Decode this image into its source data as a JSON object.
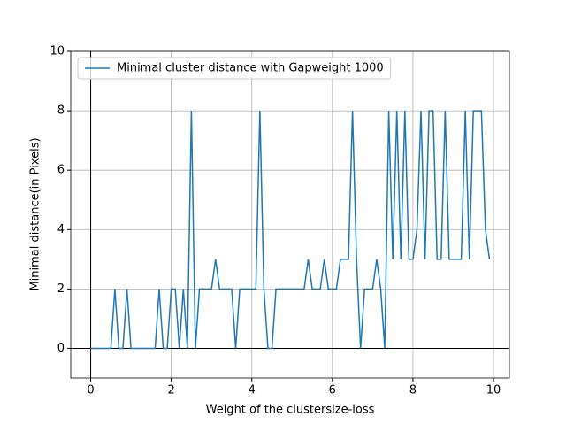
{
  "chart_data": {
    "type": "line",
    "xlabel": "Weight of the clustersize-loss",
    "ylabel": "Minimal distance(in Pixels)",
    "x": [
      0,
      0.1,
      0.2,
      0.3,
      0.4,
      0.5,
      0.6,
      0.7,
      0.8,
      0.9,
      1,
      1.1,
      1.2,
      1.3,
      1.4,
      1.5,
      1.6,
      1.7,
      1.8,
      1.9,
      2,
      2.1,
      2.2,
      2.3,
      2.4,
      2.5,
      2.6,
      2.7,
      2.8,
      2.9,
      3,
      3.1,
      3.2,
      3.3,
      3.4,
      3.5,
      3.6,
      3.7,
      3.8,
      3.9,
      4,
      4.1,
      4.2,
      4.3,
      4.4,
      4.5,
      4.6,
      4.7,
      4.8,
      4.9,
      5,
      5.1,
      5.2,
      5.3,
      5.4,
      5.5,
      5.6,
      5.7,
      5.8,
      5.9,
      6,
      6.1,
      6.2,
      6.3,
      6.4,
      6.5,
      6.6,
      6.7,
      6.8,
      6.9,
      7,
      7.1,
      7.2,
      7.3,
      7.4,
      7.5,
      7.6,
      7.7,
      7.8,
      7.9,
      8,
      8.1,
      8.2,
      8.3,
      8.4,
      8.5,
      8.6,
      8.7,
      8.8,
      8.9,
      9,
      9.1,
      9.2,
      9.3,
      9.4,
      9.5,
      9.6,
      9.7,
      9.8,
      9.9
    ],
    "series": [
      {
        "name": "Minimal cluster distance with Gapweight 1000",
        "color": "#1f77b4",
        "values": [
          0,
          0,
          0,
          0,
          0,
          0,
          2,
          0,
          0,
          2,
          0,
          0,
          0,
          0,
          0,
          0,
          0,
          2,
          0,
          0,
          2,
          2,
          0,
          2,
          0,
          8,
          0,
          2,
          2,
          2,
          2,
          3,
          2,
          2,
          2,
          2,
          0,
          2,
          2,
          2,
          2,
          2,
          8,
          2,
          0,
          0,
          2,
          2,
          2,
          2,
          2,
          2,
          2,
          2,
          3,
          2,
          2,
          2,
          3,
          2,
          2,
          2,
          3,
          3,
          3,
          8,
          3,
          0,
          2,
          2,
          2,
          3,
          2,
          0,
          8,
          3,
          8,
          3,
          8,
          3,
          3,
          4,
          8,
          3,
          8,
          8,
          3,
          3,
          8,
          3,
          3,
          3,
          3,
          8,
          3,
          8,
          8,
          8,
          4,
          3
        ]
      }
    ],
    "xlim": [
      -0.495,
      10.395
    ],
    "ylim": [
      -1,
      10
    ],
    "xticks": [
      0,
      2,
      4,
      6,
      8,
      10
    ],
    "yticks": [
      0,
      2,
      4,
      6,
      8,
      10
    ],
    "grid": true,
    "legend": "upper left"
  }
}
